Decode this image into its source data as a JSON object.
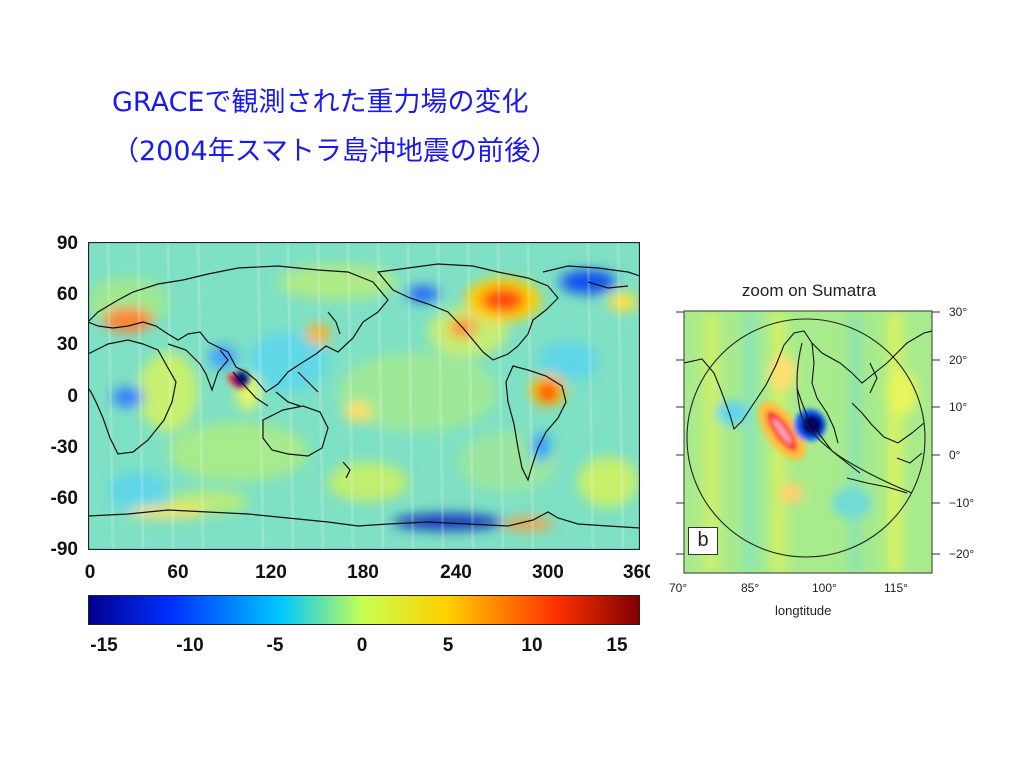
{
  "title": {
    "line1": "GRACEで観測された重力場の変化",
    "line2": "（2004年スマトラ島沖地震の前後）"
  },
  "world_map": {
    "y_ticks": [
      "90",
      "60",
      "30",
      "0",
      "-30",
      "-60",
      "-90"
    ],
    "x_ticks": [
      "0",
      "60",
      "120",
      "180",
      "240",
      "300",
      "360"
    ]
  },
  "colorbar": {
    "ticks": [
      "-15",
      "-10",
      "-5",
      "0",
      "5",
      "10",
      "15"
    ],
    "range": [
      -15,
      15
    ],
    "colors": [
      "#00008f",
      "#0030ff",
      "#00c8ff",
      "#c8ff50",
      "#ffd000",
      "#ff3000",
      "#800000"
    ]
  },
  "zoom_panel": {
    "title": "zoom on Sumatra",
    "panel_letter": "b",
    "y_ticks": [
      "30°",
      "20°",
      "10°",
      "0°",
      "−10°",
      "−20°"
    ],
    "x_ticks": [
      "70°",
      "85°",
      "100°",
      "115°"
    ],
    "xlabel": "longtitude"
  }
}
